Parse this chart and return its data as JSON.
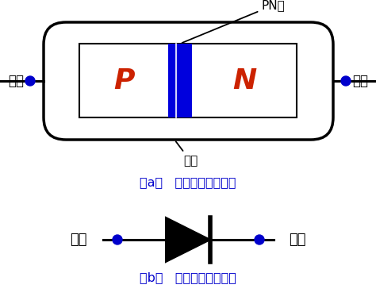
{
  "bg_color": "#ffffff",
  "blue": "#0000CC",
  "red": "#CC2200",
  "black": "#000000",
  "label_a": "（a）   二极管结构示意图",
  "label_b": "（b）   二极管的电路符号",
  "pn_label": "PN结",
  "shell_label": "外壳",
  "p_label": "P",
  "n_label": "N",
  "pos_label": "正极",
  "neg_label": "负极"
}
